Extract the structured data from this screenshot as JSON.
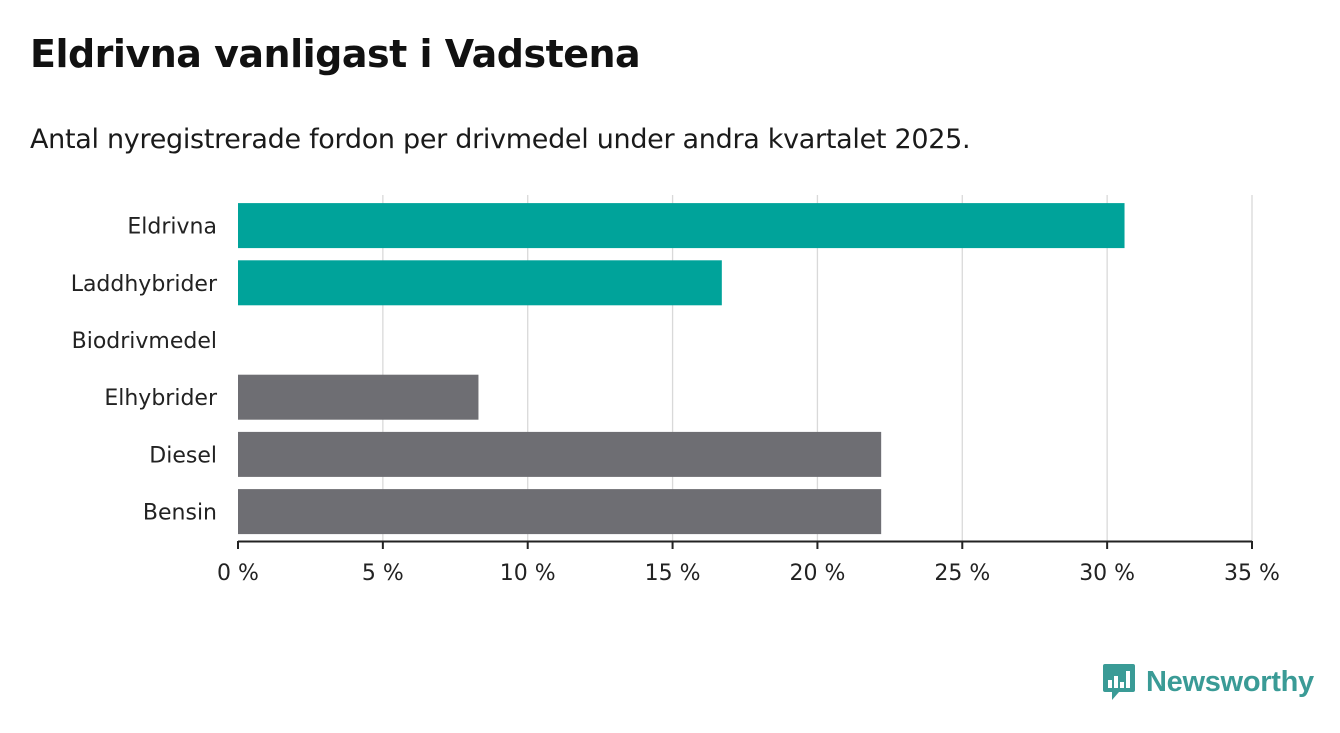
{
  "title": "Eldrivna vanligast i Vadstena",
  "subtitle": "Antal nyregistrerade fordon per drivmedel under andra kvartalet 2025.",
  "brand": {
    "name": "Newsworthy",
    "color": "#3a9b96",
    "icon": "bar-chart-speech-bubble-icon"
  },
  "colors": {
    "highlight": "#00a39a",
    "other": "#6e6e73",
    "grid": "#d9d9d9",
    "axis": "#222222"
  },
  "chart_data": {
    "type": "bar",
    "orientation": "horizontal",
    "categories": [
      "Eldrivna",
      "Laddhybrider",
      "Biodrivmedel",
      "Elhybrider",
      "Diesel",
      "Bensin"
    ],
    "values": [
      30.6,
      16.7,
      0,
      8.3,
      22.2,
      22.2
    ],
    "highlighted": [
      true,
      true,
      false,
      false,
      false,
      false
    ],
    "xlim": [
      0,
      35
    ],
    "x_ticks": [
      0,
      5,
      10,
      15,
      20,
      25,
      30,
      35
    ],
    "x_tick_labels": [
      "0 %",
      "5 %",
      "10 %",
      "15 %",
      "20 %",
      "25 %",
      "30 %",
      "35 %"
    ],
    "xlabel": "",
    "ylabel": "",
    "grid": true
  }
}
